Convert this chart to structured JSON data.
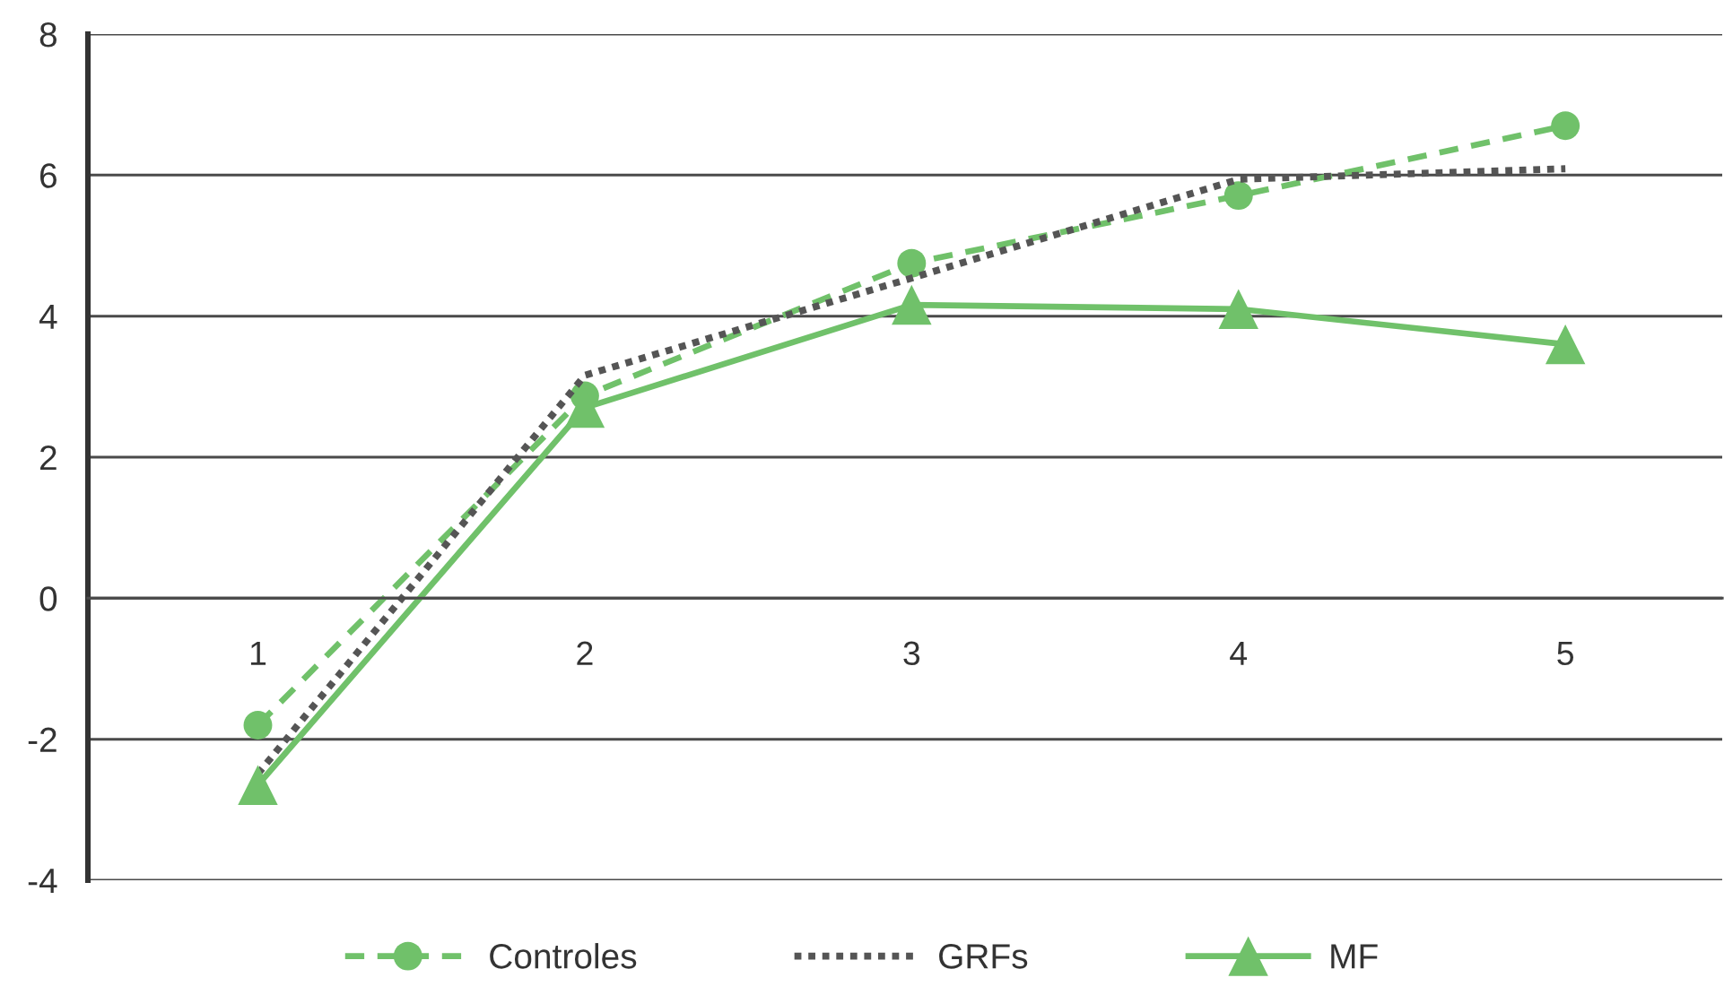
{
  "chart_data": {
    "type": "line",
    "categories": [
      "1",
      "2",
      "3",
      "4",
      "5"
    ],
    "ylim": [
      -4,
      8
    ],
    "yticks": [
      -4,
      -2,
      0,
      2,
      4,
      6,
      8
    ],
    "grid": "y",
    "legend": "bottom",
    "series": [
      {
        "name": "Controles",
        "color": "#70c16a",
        "marker": "circle",
        "line_style": "dashed",
        "values": [
          -1.8,
          2.87,
          4.75,
          5.71,
          6.7
        ]
      },
      {
        "name": "GRFs",
        "color": "#555555",
        "marker": "none",
        "line_style": "dotted",
        "values": [
          -2.49,
          3.16,
          4.54,
          5.94,
          6.09
        ]
      },
      {
        "name": "MF",
        "color": "#70c16a",
        "marker": "triangle",
        "line_style": "solid",
        "values": [
          -2.65,
          2.7,
          4.16,
          4.1,
          3.6
        ]
      }
    ]
  }
}
